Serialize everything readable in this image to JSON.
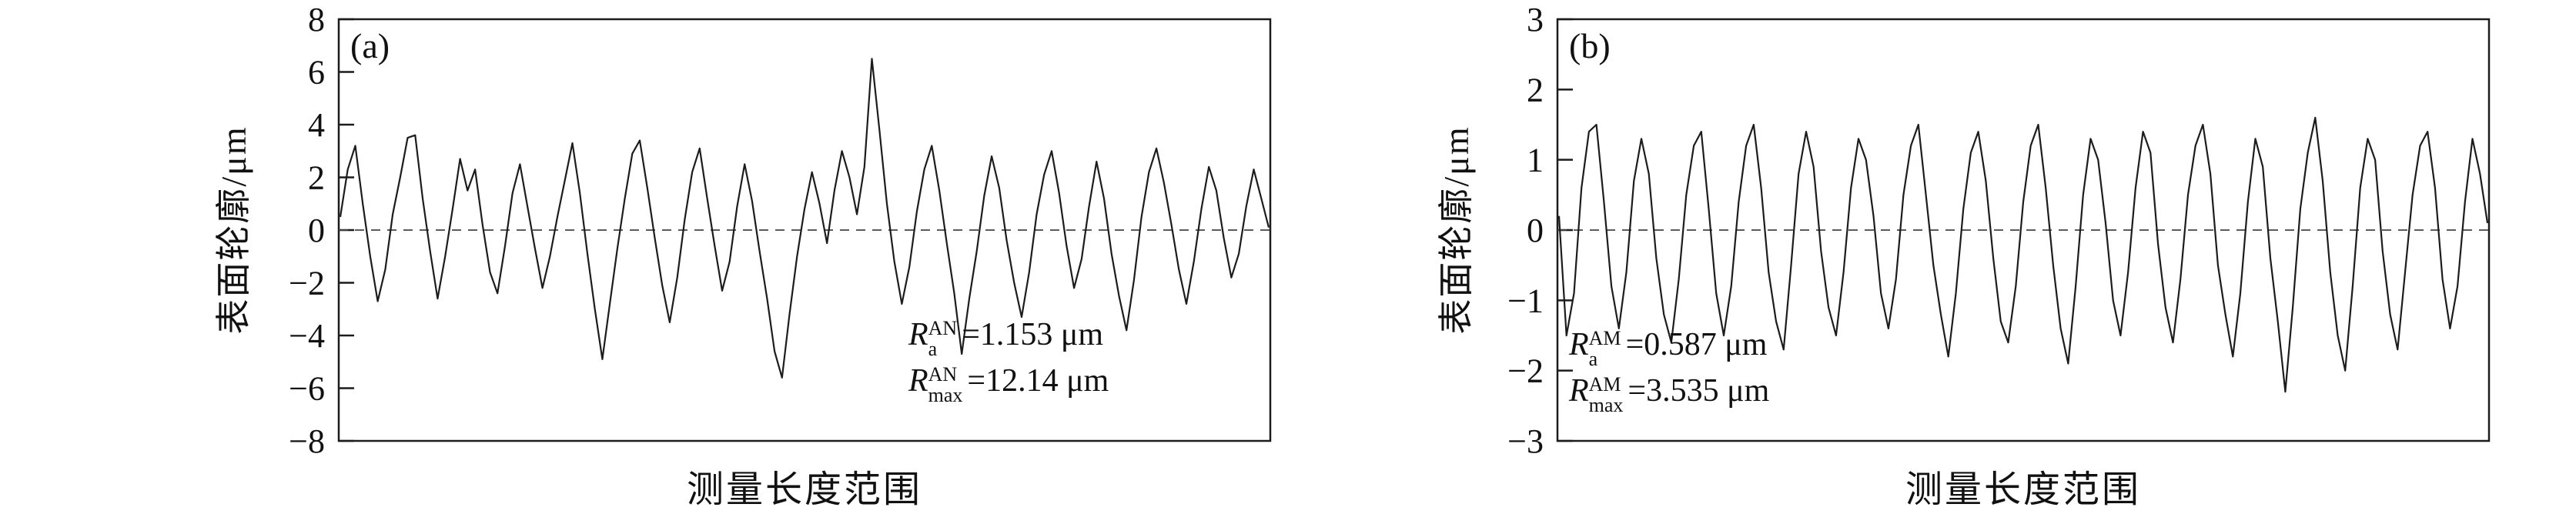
{
  "colors": {
    "line": "#1c1c1c",
    "frame": "#1c1c1c",
    "zero": "#444444"
  },
  "chart_data": [
    {
      "type": "line",
      "panel_label": "(a)",
      "ylabel": "表面轮廓/μm",
      "xlabel": "测量长度范围",
      "ylim": [
        -8,
        8
      ],
      "yticks": [
        -8,
        -6,
        -4,
        -2,
        0,
        2,
        4,
        6,
        8
      ],
      "zero_line_y": 0,
      "grid": false,
      "legend": "none",
      "annotations": {
        "position": "bottom-right",
        "ra": {
          "symbol": "R",
          "sub": "a",
          "sup": "AN",
          "value": "=1.153 μm"
        },
        "rmax": {
          "symbol": "R",
          "sub": "max",
          "sup": "AN",
          "value": "=12.14 μm"
        }
      },
      "x_unit": "relative measurement length (uniform spacing)",
      "values": [
        0.5,
        2.3,
        3.2,
        1.0,
        -1.0,
        -2.7,
        -1.5,
        0.6,
        2.0,
        3.5,
        3.6,
        1.2,
        -0.8,
        -2.6,
        -1.0,
        0.8,
        2.7,
        1.5,
        2.3,
        0.2,
        -1.6,
        -2.4,
        -0.6,
        1.4,
        2.5,
        0.9,
        -0.7,
        -2.2,
        -1.0,
        0.5,
        1.9,
        3.3,
        1.4,
        -0.9,
        -3.0,
        -4.9,
        -2.8,
        -0.7,
        1.2,
        2.9,
        3.4,
        1.6,
        -0.3,
        -2.1,
        -3.5,
        -1.8,
        0.4,
        2.2,
        3.1,
        1.2,
        -0.6,
        -2.3,
        -1.2,
        0.9,
        2.5,
        1.1,
        -0.8,
        -2.6,
        -4.6,
        -5.6,
        -3.2,
        -1.0,
        0.8,
        2.2,
        1.0,
        -0.5,
        1.5,
        3.0,
        2.0,
        0.6,
        2.4,
        6.5,
        3.8,
        1.0,
        -1.2,
        -2.8,
        -1.4,
        0.7,
        2.3,
        3.2,
        1.5,
        -0.5,
        -2.4,
        -4.7,
        -2.6,
        -0.8,
        1.3,
        2.8,
        1.6,
        -0.4,
        -2.0,
        -3.3,
        -1.6,
        0.6,
        2.1,
        3.0,
        1.4,
        -0.6,
        -2.2,
        -1.1,
        0.9,
        2.6,
        1.2,
        -0.9,
        -2.5,
        -3.8,
        -1.9,
        0.5,
        2.2,
        3.1,
        1.8,
        0.2,
        -1.5,
        -2.8,
        -1.2,
        0.8,
        2.4,
        1.5,
        -0.3,
        -1.8,
        -0.9,
        0.9,
        2.3,
        1.2,
        0.1
      ]
    },
    {
      "type": "line",
      "panel_label": "(b)",
      "ylabel": "表面轮廓/μm",
      "xlabel": "测量长度范围",
      "ylim": [
        -3,
        3
      ],
      "yticks": [
        -3,
        -2,
        -1,
        0,
        1,
        2,
        3
      ],
      "zero_line_y": 0,
      "grid": false,
      "legend": "none",
      "annotations": {
        "position": "bottom-left",
        "ra": {
          "symbol": "R",
          "sub": "a",
          "sup": "AM",
          "value": "=0.587 μm"
        },
        "rmax": {
          "symbol": "R",
          "sub": "max",
          "sup": "AM",
          "value": "=3.535 μm"
        }
      },
      "x_unit": "relative measurement length (uniform spacing)",
      "values": [
        0.2,
        -1.5,
        -0.9,
        0.6,
        1.4,
        1.5,
        0.4,
        -0.8,
        -1.4,
        -0.6,
        0.7,
        1.3,
        0.8,
        -0.4,
        -1.2,
        -1.6,
        -0.7,
        0.5,
        1.2,
        1.4,
        0.3,
        -0.9,
        -1.5,
        -0.8,
        0.4,
        1.2,
        1.5,
        0.6,
        -0.6,
        -1.3,
        -1.7,
        -0.5,
        0.8,
        1.4,
        0.9,
        -0.3,
        -1.1,
        -1.5,
        -0.6,
        0.6,
        1.3,
        1.0,
        0.2,
        -0.9,
        -1.4,
        -0.7,
        0.5,
        1.2,
        1.5,
        0.5,
        -0.5,
        -1.2,
        -1.8,
        -0.9,
        0.3,
        1.1,
        1.4,
        0.7,
        -0.4,
        -1.3,
        -1.6,
        -0.8,
        0.4,
        1.2,
        1.5,
        0.6,
        -0.5,
        -1.4,
        -1.9,
        -0.8,
        0.5,
        1.3,
        1.0,
        0.1,
        -1.0,
        -1.5,
        -0.6,
        0.6,
        1.4,
        1.1,
        -0.2,
        -1.1,
        -1.6,
        -0.7,
        0.5,
        1.2,
        1.5,
        0.8,
        -0.5,
        -1.2,
        -1.8,
        -0.9,
        0.4,
        1.3,
        0.9,
        -0.4,
        -1.3,
        -2.3,
        -1.1,
        0.3,
        1.1,
        1.6,
        0.7,
        -0.6,
        -1.5,
        -2.0,
        -0.8,
        0.6,
        1.3,
        1.0,
        -0.3,
        -1.2,
        -1.7,
        -0.6,
        0.5,
        1.2,
        1.4,
        0.6,
        -0.7,
        -1.4,
        -0.8,
        0.4,
        1.3,
        0.8,
        0.1
      ]
    }
  ]
}
